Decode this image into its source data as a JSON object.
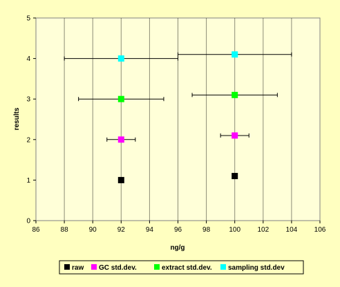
{
  "chart_data": {
    "type": "scatter",
    "xlabel": "ng/g",
    "ylabel": "results",
    "xlim": [
      86,
      106
    ],
    "ylim": [
      0,
      5
    ],
    "x_ticks": [
      86,
      88,
      90,
      92,
      94,
      96,
      98,
      100,
      102,
      104,
      106
    ],
    "y_ticks": [
      0,
      1,
      2,
      3,
      4,
      5
    ],
    "grid": "vertical",
    "legend_position": "bottom",
    "series": [
      {
        "name": "raw",
        "color": "#000000",
        "points": [
          {
            "x": 92,
            "y": 1.0
          },
          {
            "x": 100,
            "y": 1.1
          }
        ]
      },
      {
        "name": "GC std.dev.",
        "color": "#ff00ff",
        "points": [
          {
            "x": 92,
            "y": 2.0,
            "xerr_low": 91,
            "xerr_high": 93
          },
          {
            "x": 100,
            "y": 2.1,
            "xerr_low": 99,
            "xerr_high": 101
          }
        ]
      },
      {
        "name": "extract std.dev.",
        "color": "#00ff00",
        "points": [
          {
            "x": 92,
            "y": 3.0,
            "xerr_low": 89,
            "xerr_high": 95
          },
          {
            "x": 100,
            "y": 3.1,
            "xerr_low": 97,
            "xerr_high": 103
          }
        ]
      },
      {
        "name": "sampling std.dev",
        "color": "#00ffff",
        "points": [
          {
            "x": 92,
            "y": 4.0,
            "xerr_low": 88,
            "xerr_high": 96
          },
          {
            "x": 100,
            "y": 4.1,
            "xerr_low": 96,
            "xerr_high": 104
          }
        ]
      }
    ]
  }
}
